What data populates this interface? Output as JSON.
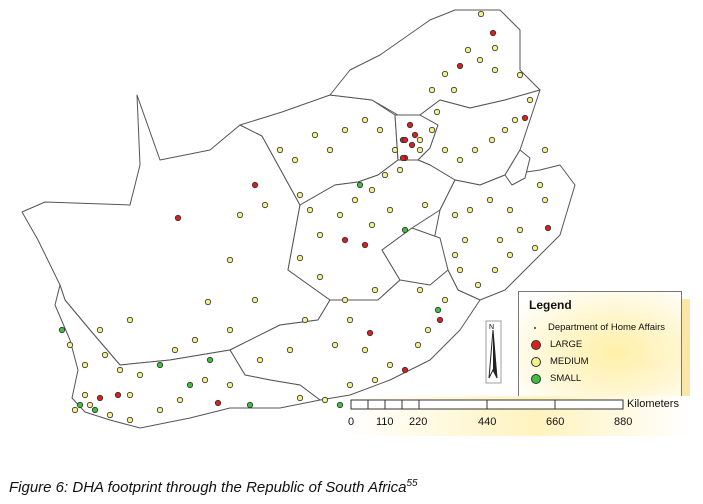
{
  "legend": {
    "title": "Legend",
    "items": [
      {
        "label": "Department of Home Affairs",
        "color": "#333333"
      },
      {
        "label": "LARGE",
        "color": "#d62020"
      },
      {
        "label": "MEDIUM",
        "color": "#f4f08a"
      },
      {
        "label": "SMALL",
        "color": "#3fbf3f"
      }
    ]
  },
  "north_arrow": {
    "label": "N"
  },
  "scale_bar": {
    "unit": "Kilometers",
    "ticks": [
      "0",
      "110",
      "220",
      "440",
      "660",
      "880"
    ]
  },
  "caption": {
    "text": "Figure 6: DHA footprint through the Republic of South Africa",
    "superscript": "55"
  }
}
